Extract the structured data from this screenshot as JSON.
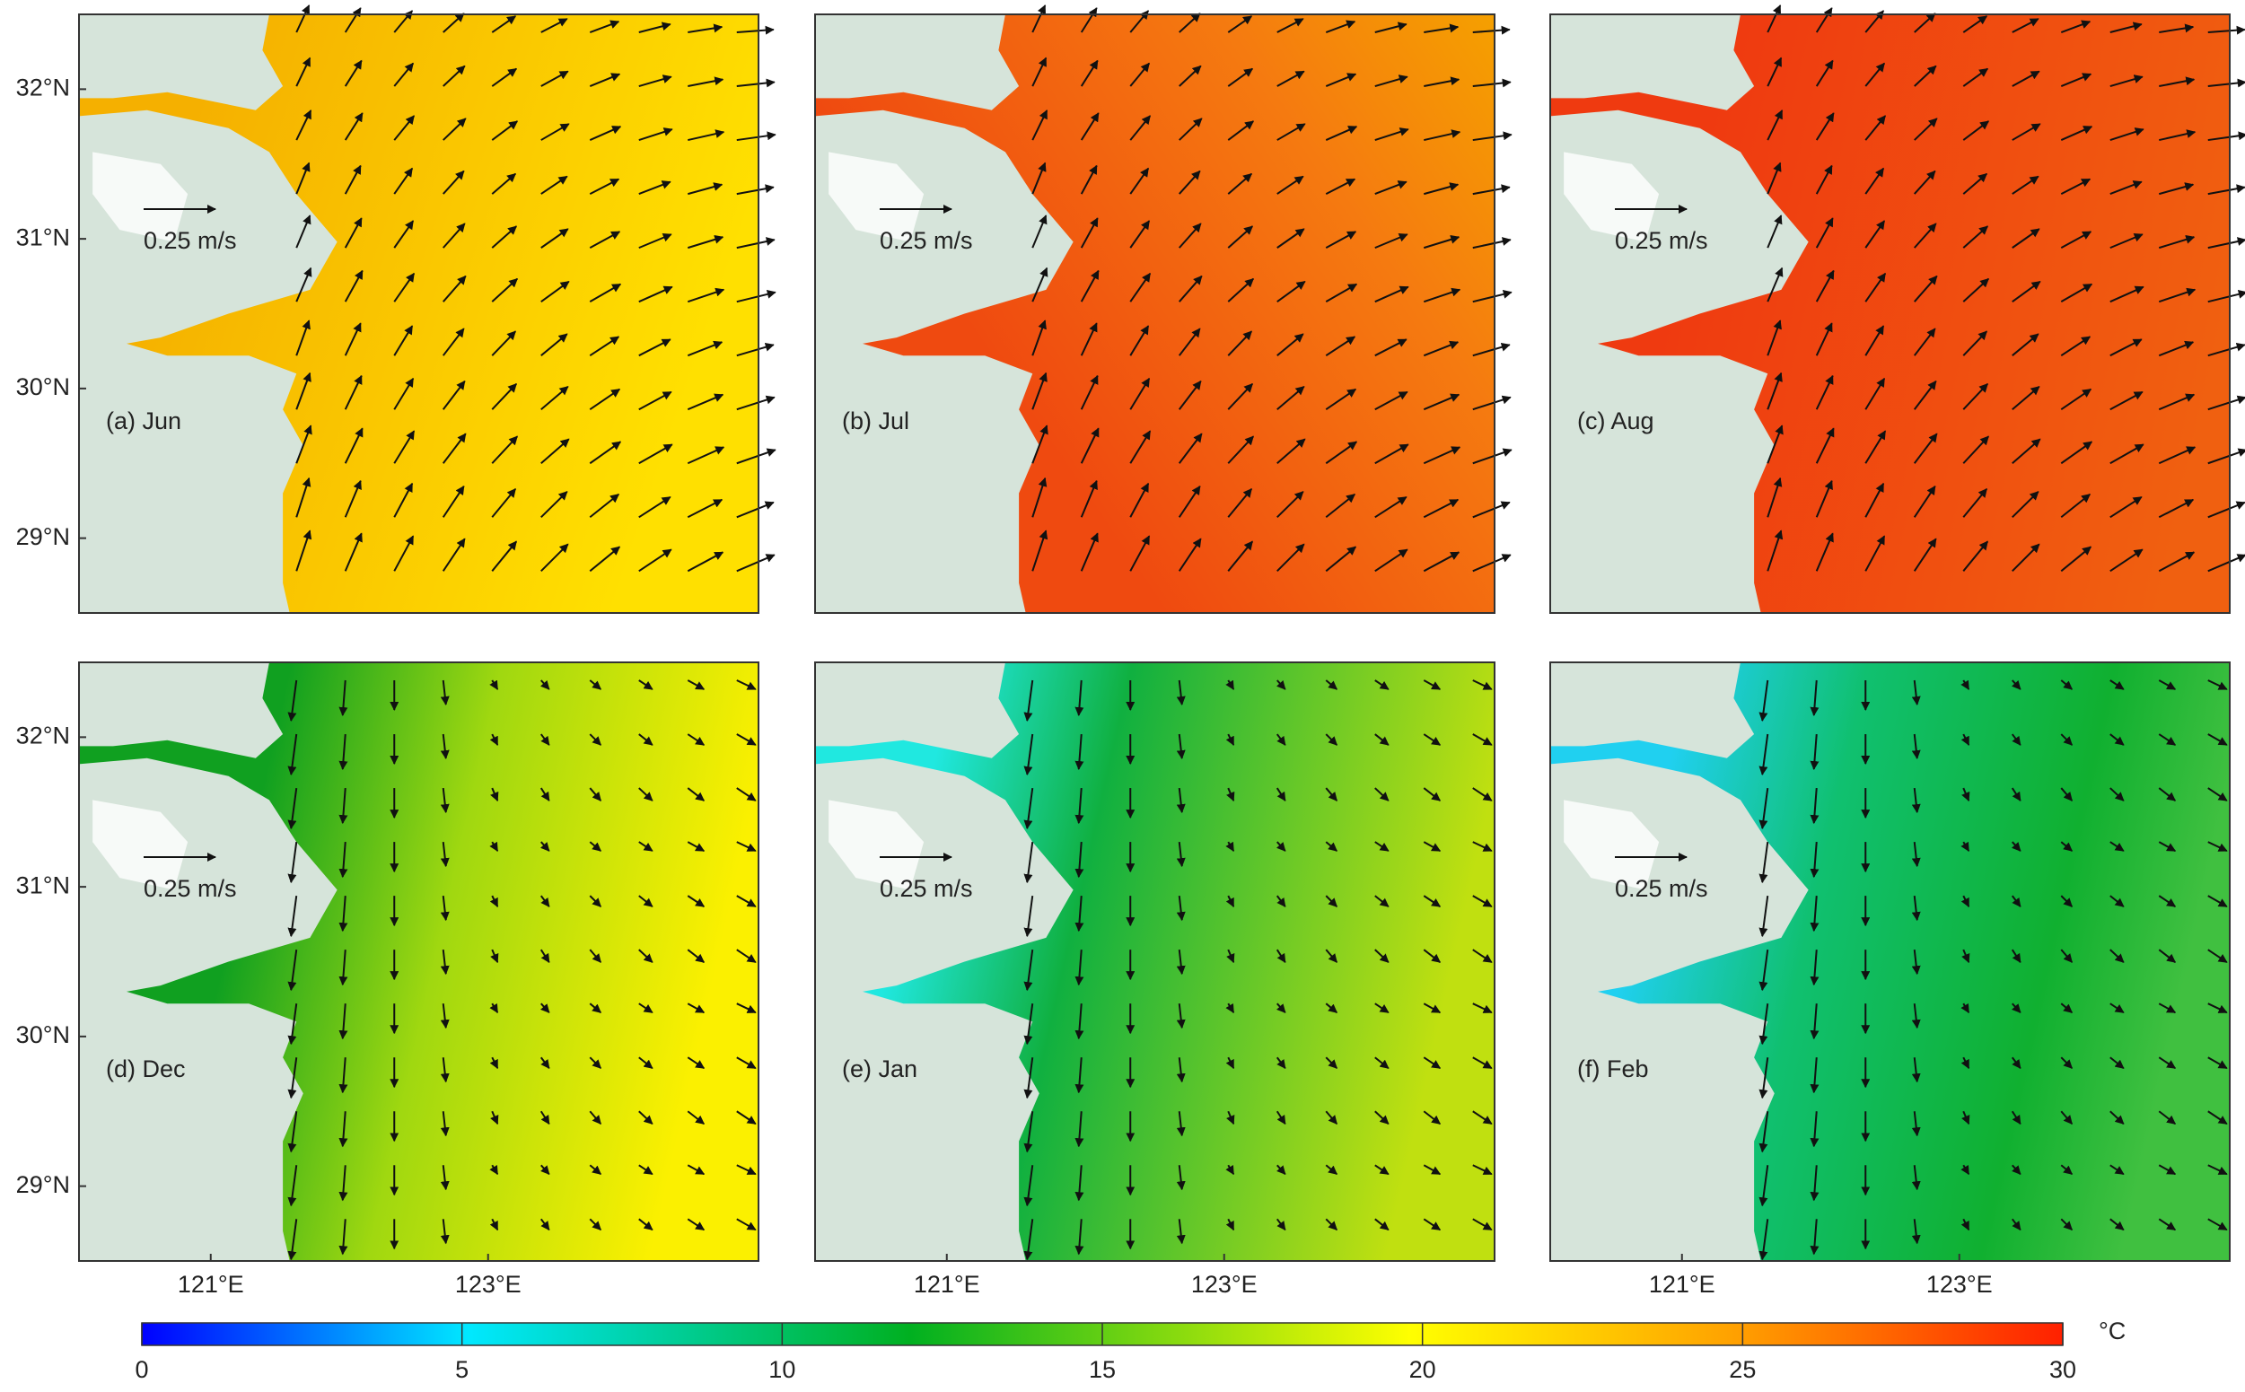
{
  "map": {
    "lat_range": [
      28.5,
      32.5
    ],
    "lon_range": [
      120.05,
      124.95
    ],
    "lat_ticks": [
      {
        "value": 32,
        "label": "32°N"
      },
      {
        "value": 31,
        "label": "31°N"
      },
      {
        "value": 30,
        "label": "30°N"
      },
      {
        "value": 29,
        "label": "29°N"
      }
    ],
    "lon_ticks": [
      {
        "value": 121,
        "label": "121°E"
      },
      {
        "value": 123,
        "label": "123°E"
      }
    ],
    "scale_label": "0.25 m/s",
    "panels": [
      {
        "label": "(a) Jun"
      },
      {
        "label": "(b) Jul"
      },
      {
        "label": "(c) Aug"
      },
      {
        "label": "(d) Dec"
      },
      {
        "label": "(e) Jan"
      },
      {
        "label": "(f) Feb"
      }
    ],
    "colorbar": {
      "range": [
        0,
        30
      ],
      "ticks": [
        0,
        5,
        10,
        15,
        20,
        25,
        30
      ],
      "unit": "°C"
    }
  }
}
